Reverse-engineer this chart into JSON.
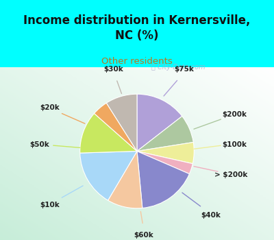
{
  "title": "Income distribution in Kernersville,\nNC (%)",
  "subtitle": "Other residents",
  "title_color": "#111111",
  "subtitle_color": "#b87820",
  "background_top": "#00ffff",
  "labels": [
    "$75k",
    "$200k",
    "$100k",
    "> $200k",
    "$40k",
    "$60k",
    "$10k",
    "$50k",
    "$20k",
    "$30k"
  ],
  "values": [
    14.5,
    8.0,
    6.0,
    3.0,
    17.0,
    10.0,
    16.0,
    12.0,
    4.5,
    9.0
  ],
  "colors": [
    "#b0a0d8",
    "#adc8a0",
    "#eeee99",
    "#f0b0c0",
    "#8888cc",
    "#f5c8a0",
    "#a8d8f8",
    "#c8e860",
    "#f0a860",
    "#c0b8b0"
  ],
  "label_color": "#222222",
  "startangle": 90
}
